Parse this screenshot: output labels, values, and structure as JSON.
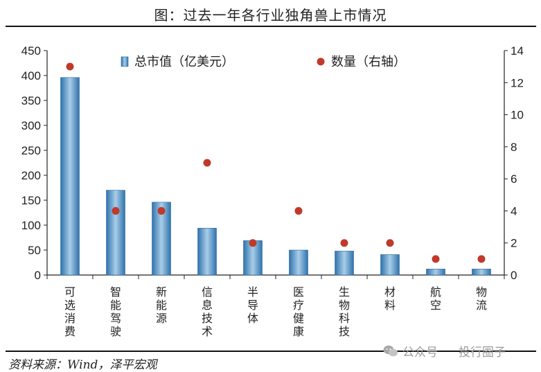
{
  "title": "图：过去一年各行业独角兽上市情况",
  "source": "资料来源：Wind，泽平宏观",
  "watermark": {
    "left": "公众号",
    "right": "投行圈子",
    "icon": "wechat-icon"
  },
  "colors": {
    "bar": "#3d86c0",
    "dot": "#c0392b",
    "axis": "#222222"
  },
  "chart_data": {
    "type": "bar",
    "categories": [
      "可选消费",
      "智能驾驶",
      "新能源",
      "信息技术",
      "半导体",
      "医疗健康",
      "生物科技",
      "材料",
      "航空",
      "物流"
    ],
    "series": [
      {
        "name": "总市值（亿美元）",
        "type": "bar",
        "axis": "left",
        "values": [
          396,
          170,
          146,
          94,
          69,
          50,
          48,
          41,
          12,
          12
        ]
      },
      {
        "name": "数量（右轴）",
        "type": "scatter",
        "axis": "right",
        "values": [
          13,
          4,
          4,
          7,
          2,
          4,
          2,
          2,
          1,
          1
        ]
      }
    ],
    "yleft": {
      "min": 0,
      "max": 450,
      "ticks": [
        0,
        50,
        100,
        150,
        200,
        250,
        300,
        350,
        400,
        450
      ]
    },
    "yright": {
      "min": 0,
      "max": 14,
      "ticks": [
        0,
        2,
        4,
        6,
        8,
        10,
        12,
        14
      ]
    },
    "legend": "top",
    "grid": false
  }
}
